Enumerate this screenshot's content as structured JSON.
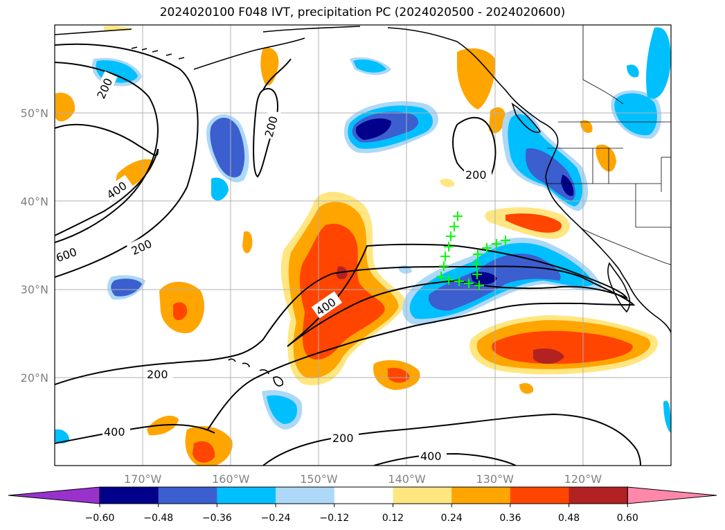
{
  "title": "2024020100 F048 IVT, precipitation PC (2024020500 - 2024020600)",
  "map": {
    "lon_labels": [
      "170°W",
      "160°W",
      "150°W",
      "140°W",
      "130°W",
      "120°W"
    ],
    "lon_values": [
      -170,
      -160,
      -150,
      -140,
      -130,
      -120
    ],
    "lat_labels": [
      "50°N",
      "40°N",
      "30°N",
      "20°N"
    ],
    "lat_values": [
      50,
      40,
      30,
      20
    ],
    "extent": {
      "lon_min": -180,
      "lon_max": -110,
      "lat_min": 10,
      "lat_max": 60
    }
  },
  "ivt_contours": {
    "levels": [
      "200",
      "400",
      "600"
    ],
    "label_instances": [
      "200",
      "200",
      "200",
      "200",
      "200",
      "400",
      "400",
      "400",
      "400",
      "600"
    ]
  },
  "colorbar": {
    "tick_labels": [
      "−0.60",
      "−0.48",
      "−0.36",
      "−0.24",
      "−0.12",
      "0.12",
      "0.24",
      "0.36",
      "0.48",
      "0.60"
    ],
    "tick_values": [
      -0.6,
      -0.48,
      -0.36,
      -0.24,
      -0.12,
      0.12,
      0.24,
      0.36,
      0.48,
      0.6
    ],
    "colors": [
      "#9932cc",
      "#00008b",
      "#3b5fcf",
      "#00bfff",
      "#add8f7",
      "#ffffff",
      "#ffe680",
      "#ffa500",
      "#ff4500",
      "#b22222",
      "#ff88aa"
    ],
    "extend": "both"
  },
  "colors": {
    "station_markers": "#00ff00",
    "gridlines": "#b0b0b0",
    "contours": "#000000"
  }
}
